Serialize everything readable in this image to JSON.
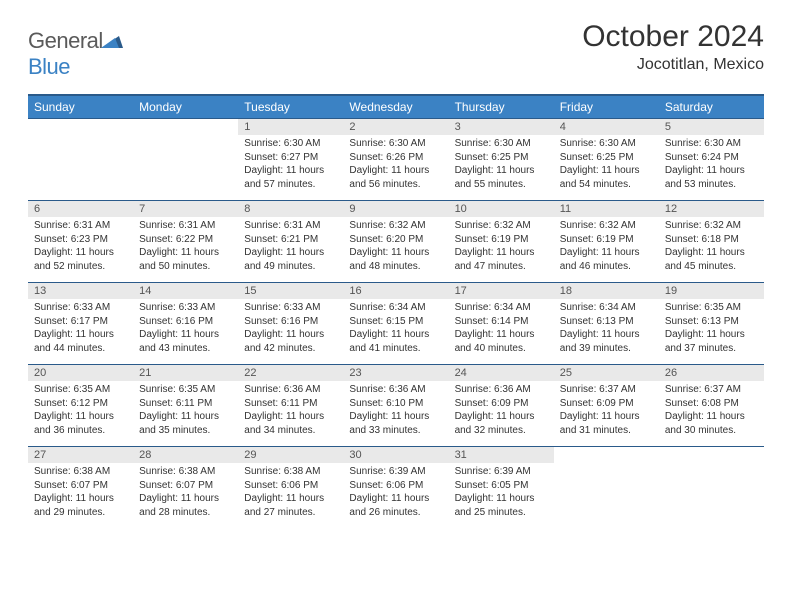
{
  "logo": {
    "general": "General",
    "blue": "Blue"
  },
  "header": {
    "title": "October 2024",
    "location": "Jocotitlan, Mexico"
  },
  "colors": {
    "header_bg": "#3b82c4",
    "header_border": "#2a5a8a",
    "daynum_bg": "#e9e9e9"
  },
  "weekdays": [
    "Sunday",
    "Monday",
    "Tuesday",
    "Wednesday",
    "Thursday",
    "Friday",
    "Saturday"
  ],
  "weeks": [
    [
      null,
      null,
      {
        "n": "1",
        "sr": "Sunrise: 6:30 AM",
        "ss": "Sunset: 6:27 PM",
        "dl1": "Daylight: 11 hours",
        "dl2": "and 57 minutes."
      },
      {
        "n": "2",
        "sr": "Sunrise: 6:30 AM",
        "ss": "Sunset: 6:26 PM",
        "dl1": "Daylight: 11 hours",
        "dl2": "and 56 minutes."
      },
      {
        "n": "3",
        "sr": "Sunrise: 6:30 AM",
        "ss": "Sunset: 6:25 PM",
        "dl1": "Daylight: 11 hours",
        "dl2": "and 55 minutes."
      },
      {
        "n": "4",
        "sr": "Sunrise: 6:30 AM",
        "ss": "Sunset: 6:25 PM",
        "dl1": "Daylight: 11 hours",
        "dl2": "and 54 minutes."
      },
      {
        "n": "5",
        "sr": "Sunrise: 6:30 AM",
        "ss": "Sunset: 6:24 PM",
        "dl1": "Daylight: 11 hours",
        "dl2": "and 53 minutes."
      }
    ],
    [
      {
        "n": "6",
        "sr": "Sunrise: 6:31 AM",
        "ss": "Sunset: 6:23 PM",
        "dl1": "Daylight: 11 hours",
        "dl2": "and 52 minutes."
      },
      {
        "n": "7",
        "sr": "Sunrise: 6:31 AM",
        "ss": "Sunset: 6:22 PM",
        "dl1": "Daylight: 11 hours",
        "dl2": "and 50 minutes."
      },
      {
        "n": "8",
        "sr": "Sunrise: 6:31 AM",
        "ss": "Sunset: 6:21 PM",
        "dl1": "Daylight: 11 hours",
        "dl2": "and 49 minutes."
      },
      {
        "n": "9",
        "sr": "Sunrise: 6:32 AM",
        "ss": "Sunset: 6:20 PM",
        "dl1": "Daylight: 11 hours",
        "dl2": "and 48 minutes."
      },
      {
        "n": "10",
        "sr": "Sunrise: 6:32 AM",
        "ss": "Sunset: 6:19 PM",
        "dl1": "Daylight: 11 hours",
        "dl2": "and 47 minutes."
      },
      {
        "n": "11",
        "sr": "Sunrise: 6:32 AM",
        "ss": "Sunset: 6:19 PM",
        "dl1": "Daylight: 11 hours",
        "dl2": "and 46 minutes."
      },
      {
        "n": "12",
        "sr": "Sunrise: 6:32 AM",
        "ss": "Sunset: 6:18 PM",
        "dl1": "Daylight: 11 hours",
        "dl2": "and 45 minutes."
      }
    ],
    [
      {
        "n": "13",
        "sr": "Sunrise: 6:33 AM",
        "ss": "Sunset: 6:17 PM",
        "dl1": "Daylight: 11 hours",
        "dl2": "and 44 minutes."
      },
      {
        "n": "14",
        "sr": "Sunrise: 6:33 AM",
        "ss": "Sunset: 6:16 PM",
        "dl1": "Daylight: 11 hours",
        "dl2": "and 43 minutes."
      },
      {
        "n": "15",
        "sr": "Sunrise: 6:33 AM",
        "ss": "Sunset: 6:16 PM",
        "dl1": "Daylight: 11 hours",
        "dl2": "and 42 minutes."
      },
      {
        "n": "16",
        "sr": "Sunrise: 6:34 AM",
        "ss": "Sunset: 6:15 PM",
        "dl1": "Daylight: 11 hours",
        "dl2": "and 41 minutes."
      },
      {
        "n": "17",
        "sr": "Sunrise: 6:34 AM",
        "ss": "Sunset: 6:14 PM",
        "dl1": "Daylight: 11 hours",
        "dl2": "and 40 minutes."
      },
      {
        "n": "18",
        "sr": "Sunrise: 6:34 AM",
        "ss": "Sunset: 6:13 PM",
        "dl1": "Daylight: 11 hours",
        "dl2": "and 39 minutes."
      },
      {
        "n": "19",
        "sr": "Sunrise: 6:35 AM",
        "ss": "Sunset: 6:13 PM",
        "dl1": "Daylight: 11 hours",
        "dl2": "and 37 minutes."
      }
    ],
    [
      {
        "n": "20",
        "sr": "Sunrise: 6:35 AM",
        "ss": "Sunset: 6:12 PM",
        "dl1": "Daylight: 11 hours",
        "dl2": "and 36 minutes."
      },
      {
        "n": "21",
        "sr": "Sunrise: 6:35 AM",
        "ss": "Sunset: 6:11 PM",
        "dl1": "Daylight: 11 hours",
        "dl2": "and 35 minutes."
      },
      {
        "n": "22",
        "sr": "Sunrise: 6:36 AM",
        "ss": "Sunset: 6:11 PM",
        "dl1": "Daylight: 11 hours",
        "dl2": "and 34 minutes."
      },
      {
        "n": "23",
        "sr": "Sunrise: 6:36 AM",
        "ss": "Sunset: 6:10 PM",
        "dl1": "Daylight: 11 hours",
        "dl2": "and 33 minutes."
      },
      {
        "n": "24",
        "sr": "Sunrise: 6:36 AM",
        "ss": "Sunset: 6:09 PM",
        "dl1": "Daylight: 11 hours",
        "dl2": "and 32 minutes."
      },
      {
        "n": "25",
        "sr": "Sunrise: 6:37 AM",
        "ss": "Sunset: 6:09 PM",
        "dl1": "Daylight: 11 hours",
        "dl2": "and 31 minutes."
      },
      {
        "n": "26",
        "sr": "Sunrise: 6:37 AM",
        "ss": "Sunset: 6:08 PM",
        "dl1": "Daylight: 11 hours",
        "dl2": "and 30 minutes."
      }
    ],
    [
      {
        "n": "27",
        "sr": "Sunrise: 6:38 AM",
        "ss": "Sunset: 6:07 PM",
        "dl1": "Daylight: 11 hours",
        "dl2": "and 29 minutes."
      },
      {
        "n": "28",
        "sr": "Sunrise: 6:38 AM",
        "ss": "Sunset: 6:07 PM",
        "dl1": "Daylight: 11 hours",
        "dl2": "and 28 minutes."
      },
      {
        "n": "29",
        "sr": "Sunrise: 6:38 AM",
        "ss": "Sunset: 6:06 PM",
        "dl1": "Daylight: 11 hours",
        "dl2": "and 27 minutes."
      },
      {
        "n": "30",
        "sr": "Sunrise: 6:39 AM",
        "ss": "Sunset: 6:06 PM",
        "dl1": "Daylight: 11 hours",
        "dl2": "and 26 minutes."
      },
      {
        "n": "31",
        "sr": "Sunrise: 6:39 AM",
        "ss": "Sunset: 6:05 PM",
        "dl1": "Daylight: 11 hours",
        "dl2": "and 25 minutes."
      },
      null,
      null
    ]
  ]
}
